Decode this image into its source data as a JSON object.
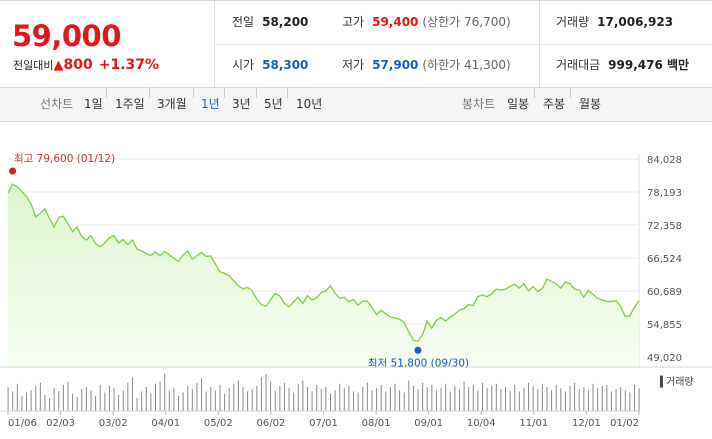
{
  "price": {
    "current": "59,000",
    "change_label": "전일대비",
    "change_arrow": "▲",
    "change_amount": "800",
    "change_percent": "+1.37%"
  },
  "summary": {
    "prev_close": {
      "label": "전일",
      "value": "58,200"
    },
    "high": {
      "label": "고가",
      "value": "59,400",
      "limit": "(상한가 76,700)"
    },
    "volume": {
      "label": "거래량",
      "value": "17,006,923"
    },
    "open": {
      "label": "시가",
      "value": "58,300"
    },
    "low": {
      "label": "저가",
      "value": "57,900",
      "limit": "(하한가 41,300)"
    },
    "amount": {
      "label": "거래대금",
      "value": "999,476 백만"
    }
  },
  "tabs": {
    "line_label": "선차트",
    "line_items": [
      "1일",
      "1주일",
      "3개월",
      "1년",
      "3년",
      "5년",
      "10년"
    ],
    "line_active": "1년",
    "candle_label": "봉차트",
    "candle_items": [
      "일봉",
      "주봉",
      "월봉"
    ]
  },
  "colors": {
    "up": "#e01818",
    "down": "#1a5fbf",
    "line": "#7ad33a",
    "fill": "#dff6cf"
  },
  "chart_data": {
    "type": "area",
    "ylabels": [
      "84,028",
      "78,193",
      "72,358",
      "66,524",
      "60,689",
      "54,855",
      "49,020"
    ],
    "ylim": [
      49020,
      84028
    ],
    "xlabels": [
      "01/06",
      "02/03",
      "03/02",
      "04/01",
      "05/02",
      "06/02",
      "07/01",
      "08/01",
      "09/01",
      "10/04",
      "11/01",
      "12/01",
      "01/02"
    ],
    "max_label": "최고 79,600 (01/12)",
    "min_label": "최저 51,800 (09/30)",
    "volume_label": "거래량",
    "grid": true,
    "price_series": [
      78000,
      79600,
      79100,
      78300,
      77400,
      76100,
      73800,
      74400,
      75200,
      73500,
      72000,
      73700,
      73900,
      72600,
      71200,
      72000,
      70300,
      69700,
      70500,
      69100,
      68500,
      69200,
      70100,
      70500,
      69200,
      69800,
      68900,
      69700,
      68100,
      67800,
      67300,
      67000,
      67600,
      66900,
      67700,
      67100,
      66500,
      65900,
      67000,
      67800,
      66300,
      66900,
      67500,
      66800,
      66900,
      65500,
      64100,
      63800,
      63400,
      62500,
      61600,
      61100,
      61300,
      60700,
      59300,
      58300,
      58000,
      59100,
      60300,
      59800,
      58500,
      57900,
      58800,
      59600,
      58500,
      59900,
      59100,
      59500,
      60400,
      60700,
      61600,
      60300,
      59400,
      59600,
      58800,
      59200,
      58200,
      58900,
      58900,
      57800,
      56500,
      57300,
      56700,
      56100,
      55900,
      55700,
      55100,
      53500,
      52000,
      51800,
      52900,
      55300,
      54100,
      55500,
      56000,
      55400,
      56100,
      56600,
      57300,
      57600,
      58300,
      58100,
      59700,
      60000,
      59700,
      60200,
      61000,
      60900,
      61000,
      61500,
      61900,
      61200,
      62000,
      60700,
      61500,
      60600,
      61100,
      62800,
      62400,
      62000,
      61200,
      62300,
      62000,
      61000,
      60900,
      59600,
      60800,
      60100,
      59400,
      59100,
      58900,
      58800,
      59000,
      58000,
      56200,
      56300,
      57800,
      59000
    ],
    "volume_series": [
      22,
      18,
      25,
      14,
      17,
      19,
      23,
      26,
      15,
      12,
      21,
      18,
      24,
      27,
      16,
      13,
      20,
      22,
      19,
      14,
      24,
      17,
      23,
      21,
      15,
      19,
      26,
      31,
      12,
      18,
      22,
      16,
      25,
      27,
      34,
      19,
      21,
      14,
      17,
      23,
      20,
      26,
      30,
      18,
      22,
      19,
      24,
      16,
      21,
      25,
      28,
      22,
      18,
      20,
      23,
      31,
      34,
      27,
      19,
      23,
      26,
      21,
      17,
      25,
      28,
      22,
      18,
      24,
      20,
      22,
      16,
      19,
      25,
      21,
      23,
      18,
      17,
      22,
      26,
      19,
      21,
      24,
      18,
      22,
      25,
      19,
      17,
      28,
      23,
      20,
      26,
      22,
      24,
      19,
      21,
      25,
      18,
      23,
      20,
      27,
      22,
      24,
      19,
      26,
      21,
      23,
      25,
      20,
      22,
      19,
      24,
      18,
      21,
      26,
      23,
      20,
      25,
      22,
      19,
      24,
      21,
      18,
      23,
      26,
      20,
      22,
      19,
      25,
      21,
      23,
      24,
      18,
      20,
      22,
      19,
      17,
      24,
      21
    ]
  }
}
